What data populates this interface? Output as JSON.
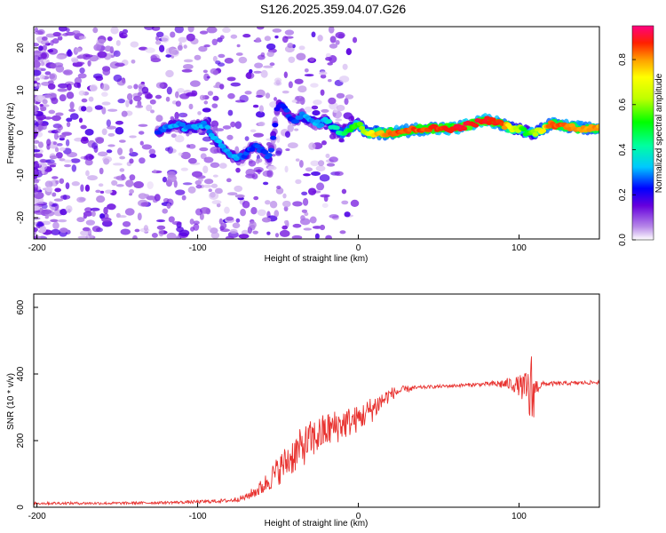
{
  "title": "S126.2025.359.04.07.G26",
  "chart_data": [
    {
      "type": "heatmap",
      "xlabel": "Height of straight line (km)",
      "ylabel": "Frequency (Hz)",
      "xlim": [
        -202,
        150
      ],
      "ylim": [
        -25,
        25
      ],
      "xticks": [
        -200,
        -100,
        0,
        100
      ],
      "yticks": [
        -20,
        -10,
        0,
        10,
        20
      ],
      "colorbar": {
        "label": "Normalized spectral amplitude",
        "range": [
          0.0,
          0.95
        ],
        "ticks": [
          0.0,
          0.2,
          0.4,
          0.6,
          0.8
        ]
      },
      "ridge": {
        "x": [
          -125,
          -115,
          -105,
          -95,
          -88,
          -80,
          -75,
          -70,
          -65,
          -60,
          -55,
          -50,
          -45,
          -40,
          -35,
          -30,
          -25,
          -20,
          -15,
          -10,
          -5,
          0,
          5,
          10,
          20,
          40,
          60,
          80,
          90,
          95,
          100,
          105,
          110,
          120,
          140,
          150
        ],
        "y": [
          0,
          2,
          1,
          2,
          -2,
          -5,
          -6,
          -5,
          -3,
          -4,
          -6,
          7,
          5,
          3,
          4,
          3,
          2,
          3,
          1,
          0,
          1,
          2,
          0,
          0,
          0,
          1,
          1,
          3,
          2,
          1,
          1,
          0,
          0,
          2,
          1,
          1
        ],
        "amp": [
          0.25,
          0.3,
          0.3,
          0.3,
          0.3,
          0.3,
          0.3,
          0.25,
          0.25,
          0.25,
          0.25,
          0.2,
          0.25,
          0.25,
          0.3,
          0.3,
          0.3,
          0.35,
          0.4,
          0.45,
          0.5,
          0.55,
          0.65,
          0.75,
          0.85,
          0.85,
          0.9,
          0.9,
          0.85,
          0.7,
          0.6,
          0.5,
          0.6,
          0.85,
          0.8,
          0.8
        ]
      }
    },
    {
      "type": "line",
      "xlabel": "Height of straight line (km)",
      "ylabel": "SNR (10 * v/v)",
      "xlim": [
        -202,
        150
      ],
      "ylim": [
        0,
        640
      ],
      "xticks": [
        -200,
        -100,
        0,
        100
      ],
      "yticks": [
        0,
        200,
        400,
        600
      ],
      "color": "#e8322f",
      "x": [
        -202,
        -150,
        -120,
        -100,
        -80,
        -70,
        -60,
        -50,
        -40,
        -30,
        -20,
        -10,
        0,
        10,
        20,
        30,
        40,
        60,
        80,
        95,
        100,
        105,
        108,
        110,
        115,
        130,
        150
      ],
      "base": [
        12,
        12,
        14,
        16,
        20,
        30,
        60,
        110,
        160,
        200,
        230,
        250,
        265,
        300,
        340,
        355,
        360,
        365,
        370,
        370,
        365,
        350,
        330,
        360,
        370,
        372,
        375
      ],
      "noise": [
        8,
        8,
        8,
        10,
        12,
        20,
        50,
        90,
        120,
        120,
        110,
        100,
        80,
        80,
        40,
        20,
        10,
        10,
        12,
        40,
        60,
        120,
        300,
        60,
        15,
        12,
        12
      ]
    }
  ]
}
